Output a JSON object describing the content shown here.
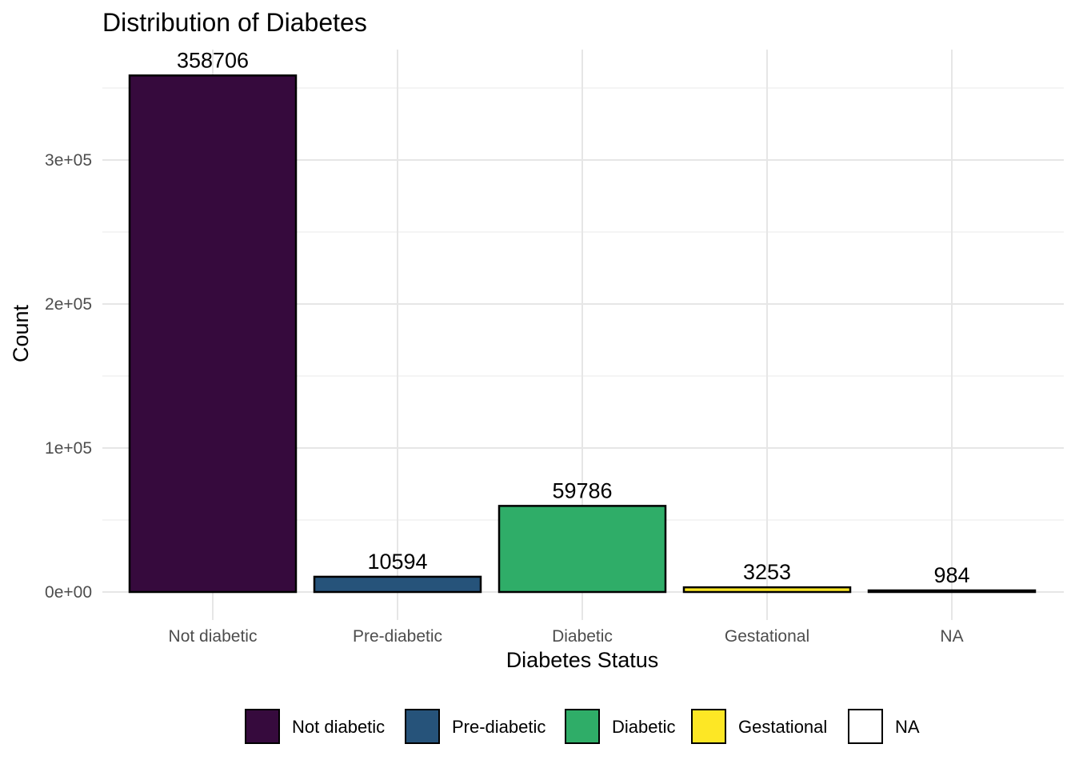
{
  "chart_data": {
    "type": "bar",
    "title": "Distribution of Diabetes",
    "xlabel": "Diabetes Status",
    "ylabel": "Count",
    "categories": [
      "Not diabetic",
      "Pre-diabetic",
      "Diabetic",
      "Gestational",
      "NA"
    ],
    "values": [
      358706,
      10594,
      59786,
      3253,
      984
    ],
    "data_labels": [
      "358706",
      "10594",
      "59786",
      "3253",
      "984"
    ],
    "colors": [
      "#360a3d",
      "#26537a",
      "#2fad68",
      "#fde725",
      "#ffffff"
    ],
    "bar_outline": "#000000",
    "ylim": [
      0,
      360000
    ],
    "y_ticks": [
      0,
      100000,
      200000,
      300000
    ],
    "y_tick_labels": [
      "0e+00",
      "1e+05",
      "2e+05",
      "3e+05"
    ],
    "grid": true,
    "legend": {
      "position": "bottom",
      "entries": [
        "Not diabetic",
        "Pre-diabetic",
        "Diabetic",
        "Gestational",
        "NA"
      ]
    }
  }
}
